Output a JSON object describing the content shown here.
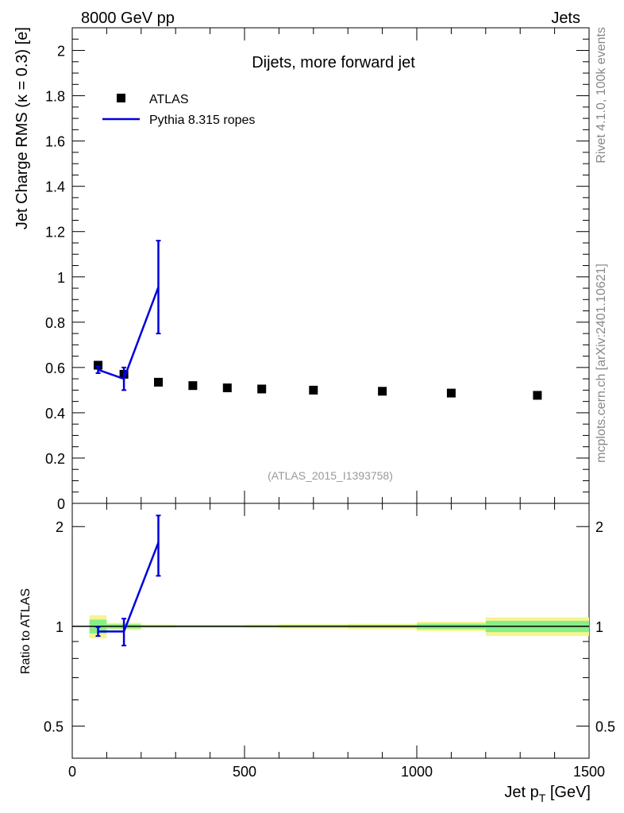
{
  "header": {
    "left": "8000 GeV pp",
    "right": "Jets"
  },
  "side_labels": {
    "rivet": "Rivet 4.1.0,  100k events",
    "mcplots": "mcplots.cern.ch [arXiv:2401.10621]"
  },
  "chart_data": [
    {
      "type": "scatter",
      "title": "Dijets, more forward jet",
      "watermark": "(ATLAS_2015_I1393758)",
      "ylabel": "Jet Charge RMS (κ = 0.3) [e]",
      "xlim": [
        0,
        1500
      ],
      "ylim": [
        0,
        2.1
      ],
      "y_ticks": [
        "0",
        "0.2",
        "0.4",
        "0.6",
        "0.8",
        "1",
        "1.2",
        "1.4",
        "1.6",
        "1.8",
        "2"
      ],
      "legend_position": "top-left",
      "series": [
        {
          "name": "ATLAS",
          "style": "markers",
          "color": "#000000",
          "x": [
            75,
            150,
            250,
            350,
            450,
            550,
            700,
            900,
            1100,
            1350
          ],
          "y": [
            0.61,
            0.57,
            0.535,
            0.52,
            0.51,
            0.505,
            0.5,
            0.495,
            0.487,
            0.477
          ]
        },
        {
          "name": "Pythia 8.315 ropes",
          "style": "line",
          "color": "#0000dd",
          "x": [
            75,
            150,
            250
          ],
          "y": [
            0.59,
            0.55,
            0.955
          ],
          "err": [
            0.015,
            0.05,
            0.205
          ]
        }
      ]
    },
    {
      "type": "line",
      "ylabel": "Ratio to ATLAS",
      "xlabel": "Jet p_T [GeV]",
      "xlim": [
        0,
        1500
      ],
      "ylim": [
        0.4,
        2.35
      ],
      "x_ticks": [
        "0",
        "500",
        "1000",
        "1500"
      ],
      "y_ticks": [
        "0.5",
        "1",
        "2"
      ],
      "reference": 1,
      "band_bins": [
        [
          50,
          100
        ],
        [
          100,
          200
        ],
        [
          200,
          300
        ],
        [
          300,
          400
        ],
        [
          400,
          500
        ],
        [
          500,
          600
        ],
        [
          600,
          800
        ],
        [
          800,
          1000
        ],
        [
          1000,
          1200
        ],
        [
          1200,
          1500
        ]
      ],
      "band_halfwidth": [
        0.08,
        0.025,
        0.012,
        0.01,
        0.01,
        0.012,
        0.015,
        0.018,
        0.032,
        0.065
      ],
      "series": [
        {
          "name": "Pythia 8.315 ropes",
          "color": "#0000dd",
          "x": [
            75,
            150,
            250
          ],
          "y": [
            0.965,
            0.965,
            1.79
          ],
          "err": [
            0.03,
            0.09,
            0.37
          ]
        }
      ]
    }
  ]
}
